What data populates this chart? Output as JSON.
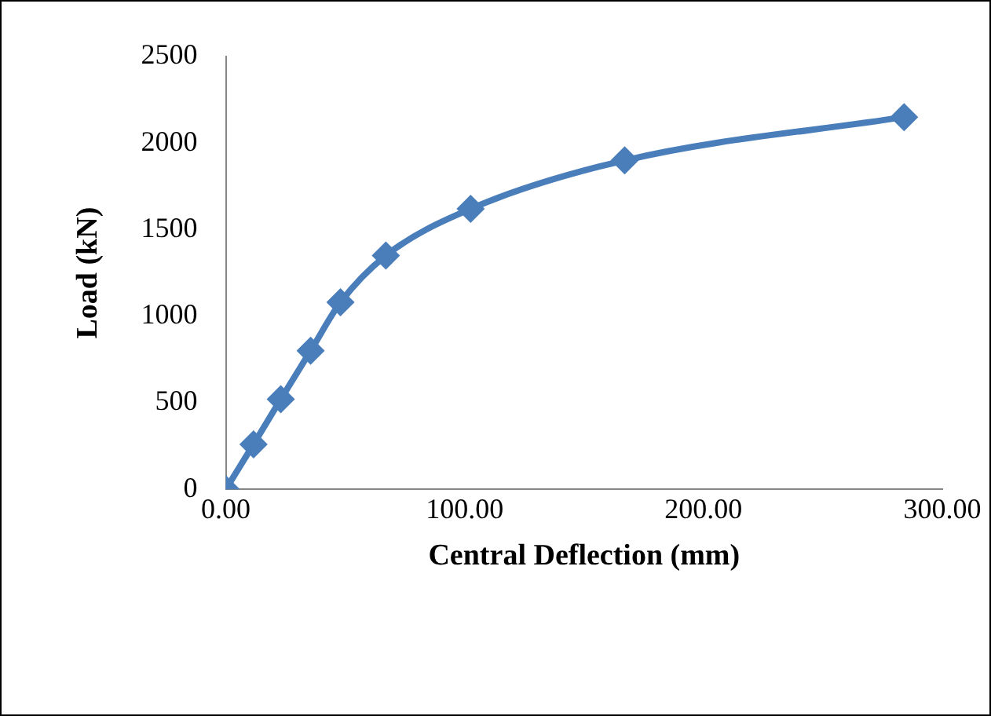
{
  "chart_data": {
    "type": "line",
    "xlabel": "Central Deflection (mm)",
    "ylabel": "Load (kN)",
    "x": [
      0,
      11.6,
      23,
      35.5,
      48,
      67,
      102.5,
      167,
      284
    ],
    "series": [
      {
        "color": "#4a7ebb",
        "values": [
          0,
          260,
          520,
          800,
          1080,
          1350,
          1620,
          1900,
          2150
        ]
      }
    ],
    "xlim": [
      0,
      300
    ],
    "xticks": [
      {
        "value": 0,
        "label": "0.00"
      },
      {
        "value": 100,
        "label": "100.00"
      },
      {
        "value": 200,
        "label": "200.00"
      },
      {
        "value": 300,
        "label": "300.00"
      }
    ],
    "ylim": [
      0,
      2500
    ],
    "yticks": [
      0,
      500,
      1000,
      1500,
      2000,
      2500
    ],
    "grid": false,
    "legend": false,
    "marker": "diamond",
    "line_style": "solid"
  }
}
